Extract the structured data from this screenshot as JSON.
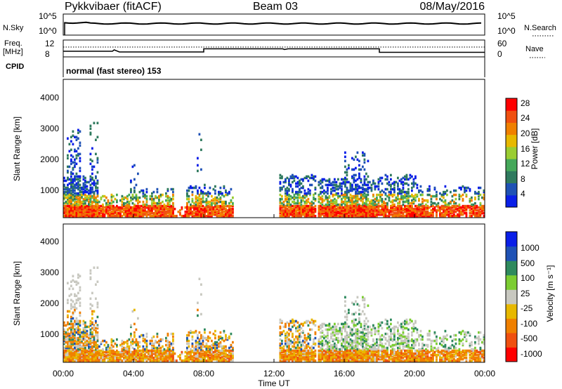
{
  "header": {
    "station": "Pykkvibaer (fitACF)",
    "beam": "Beam 03",
    "date": "08/May/2016"
  },
  "panels": {
    "nsky_label": "N.Sky",
    "nsky_ticks": [
      "10^5",
      "10^0"
    ],
    "nsearch_label": "N.Search",
    "nsearch_ticks": [
      "10^5",
      "10^0"
    ],
    "freq_label_top": "Freq.",
    "freq_label_unit": "[MHz]",
    "freq_ticks": [
      "12",
      "8"
    ],
    "nave_label": "Nave",
    "nave_ticks": [
      "60",
      "0"
    ],
    "cpid_label": "CPID",
    "cpid_text": "normal (fast stereo) 153"
  },
  "colors": {
    "power_scale": [
      "#0a1fe8",
      "#1f52b5",
      "#2f7a5e",
      "#45a85a",
      "#9acd32",
      "#e7b800",
      "#f08000",
      "#f05010",
      "#ff0000"
    ],
    "velocity_scale": [
      "#ff0000",
      "#f05010",
      "#f08000",
      "#e7b800",
      "#c8c8c0",
      "#7ccd32",
      "#2f8a5e",
      "#1f52b5",
      "#0a1fe8"
    ]
  },
  "chart_data": [
    {
      "type": "heatmap",
      "name": "power",
      "ylabel": "Slant Range [km]",
      "yticks": [
        "1000",
        "2000",
        "3000",
        "4000"
      ],
      "ylim": [
        180,
        4500
      ],
      "xlim": [
        0,
        24
      ],
      "colorbar_label": "Power [dB]",
      "colorbar_ticks": [
        "4",
        "8",
        "12",
        "16",
        "20",
        "24",
        "28"
      ],
      "colorbar_range": [
        0,
        30
      ]
    },
    {
      "type": "heatmap",
      "name": "velocity",
      "ylabel": "Slant Range [km]",
      "yticks": [
        "1000",
        "2000",
        "3000",
        "4000"
      ],
      "ylim": [
        180,
        4500
      ],
      "xlim": [
        0,
        24
      ],
      "colorbar_label": "Velocity [m s⁻¹]",
      "colorbar_ticks": [
        "1000",
        "500",
        "100",
        "25",
        "-25",
        "-100",
        "-500",
        "-1000"
      ]
    }
  ],
  "xaxis": {
    "ticks": [
      "00:00",
      "04:00",
      "08:00",
      "12:00",
      "16:00",
      "20:00",
      "00:00"
    ],
    "label": "Time UT"
  }
}
